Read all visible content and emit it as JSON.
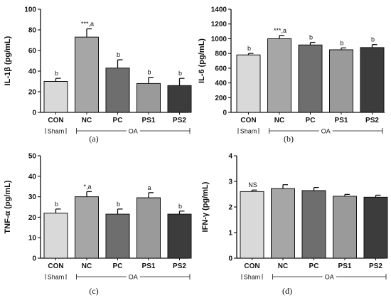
{
  "chart_data": [
    {
      "type": "bar",
      "panel": "(a)",
      "ylabel": "IL-1β (pg/mL)",
      "ylim": [
        0,
        100
      ],
      "yticks": [
        0,
        20,
        40,
        60,
        80,
        100
      ],
      "categories": [
        "CON",
        "NC",
        "PC",
        "PS1",
        "PS2"
      ],
      "values": [
        30,
        73,
        43,
        28,
        26
      ],
      "errors": [
        3,
        8,
        8,
        6,
        7
      ],
      "annotations": [
        "b",
        "***,a",
        "b",
        "b",
        "b"
      ],
      "groups": [
        {
          "label": "Sham",
          "from": 0,
          "to": 0
        },
        {
          "label": "OA",
          "from": 1,
          "to": 4
        }
      ]
    },
    {
      "type": "bar",
      "panel": "(b)",
      "ylabel": "IL-6 (pg/mL)",
      "ylim": [
        0,
        1400
      ],
      "yticks": [
        0,
        200,
        400,
        600,
        800,
        1000,
        1200,
        1400
      ],
      "categories": [
        "CON",
        "NC",
        "PC",
        "PS1",
        "PS2"
      ],
      "values": [
        780,
        1000,
        915,
        850,
        880
      ],
      "errors": [
        20,
        45,
        35,
        25,
        40
      ],
      "annotations": [
        "b",
        "***,a",
        "b",
        "b",
        "b"
      ],
      "groups": [
        {
          "label": "Sham",
          "from": 0,
          "to": 0
        },
        {
          "label": "OA",
          "from": 1,
          "to": 4
        }
      ]
    },
    {
      "type": "bar",
      "panel": "(c)",
      "ylabel": "TNF-α (pg/mL)",
      "ylim": [
        0,
        50
      ],
      "yticks": [
        0,
        10,
        20,
        30,
        40,
        50
      ],
      "categories": [
        "CON",
        "NC",
        "PC",
        "PS1",
        "PS2"
      ],
      "values": [
        22,
        30,
        21.5,
        29.5,
        21.5
      ],
      "errors": [
        2,
        2.5,
        2.5,
        2.5,
        1.5
      ],
      "annotations": [
        "b",
        "*,a",
        "b",
        "a",
        "b"
      ],
      "groups": [
        {
          "label": "Sham",
          "from": 0,
          "to": 0
        },
        {
          "label": "OA",
          "from": 1,
          "to": 4
        }
      ]
    },
    {
      "type": "bar",
      "panel": "(d)",
      "ylabel": "IFN-γ (pg/mL)",
      "ylim": [
        0,
        4
      ],
      "yticks": [
        0,
        1,
        2,
        3,
        4
      ],
      "categories": [
        "CON",
        "NC",
        "PC",
        "PS1",
        "PS2"
      ],
      "values": [
        2.6,
        2.72,
        2.64,
        2.42,
        2.38
      ],
      "errors": [
        0.06,
        0.15,
        0.12,
        0.07,
        0.08
      ],
      "annotations": [
        "NS",
        "",
        "",
        "",
        ""
      ],
      "groups": [
        {
          "label": "Sham",
          "from": 0,
          "to": 0
        },
        {
          "label": "OA",
          "from": 1,
          "to": 4
        }
      ]
    }
  ],
  "colors": {
    "bars": [
      "#d9d9d9",
      "#a6a6a6",
      "#6e6e6e",
      "#9a9a9a",
      "#3c3c3c"
    ],
    "axis": "#111111"
  }
}
